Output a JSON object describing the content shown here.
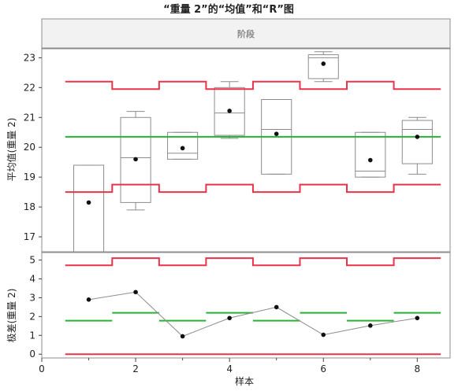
{
  "title": "“重量 2”的“均值”和“R”图",
  "phase_label": "阶段",
  "colors": {
    "limit": "#e8334a",
    "center": "#27b232",
    "box": "#8c8c8c",
    "point": "#111111",
    "line": "#8c8c8c",
    "frame": "#8c8c8c"
  },
  "chart_data": [
    {
      "type": "box",
      "ylabel": "平均值(重量 2)",
      "xlim": [
        0,
        8.7
      ],
      "ylim": [
        16.5,
        23.3
      ],
      "yticks": [
        "17",
        "18",
        "19",
        "20",
        "21",
        "22",
        "23"
      ],
      "samples": [
        1,
        2,
        3,
        4,
        5,
        6,
        7,
        8
      ],
      "means": [
        18.15,
        19.6,
        19.97,
        21.22,
        20.45,
        22.8,
        19.57,
        20.35
      ],
      "boxes": [
        {
          "sample": 1,
          "min": 16.5,
          "q1": 16.5,
          "median": 16.5,
          "q3": 19.4,
          "max": 19.4
        },
        {
          "sample": 2,
          "min": 17.9,
          "q1": 18.15,
          "median": 19.65,
          "q3": 21.0,
          "max": 21.2
        },
        {
          "sample": 3,
          "min": 19.6,
          "q1": 19.6,
          "median": 19.8,
          "q3": 20.5,
          "max": 20.5
        },
        {
          "sample": 4,
          "min": 20.3,
          "q1": 20.4,
          "median": 21.15,
          "q3": 22.0,
          "max": 22.2
        },
        {
          "sample": 5,
          "min": 19.1,
          "q1": 19.1,
          "median": 20.6,
          "q3": 21.6,
          "max": 21.6
        },
        {
          "sample": 6,
          "min": 22.2,
          "q1": 22.3,
          "median": 23.0,
          "q3": 23.1,
          "max": 23.2
        },
        {
          "sample": 7,
          "min": 19.0,
          "q1": 19.0,
          "median": 19.2,
          "q3": 20.5,
          "max": 20.5
        },
        {
          "sample": 8,
          "min": 19.1,
          "q1": 19.45,
          "median": 20.6,
          "q3": 20.9,
          "max": 21.0
        }
      ],
      "center_line": 20.35,
      "ucl": [
        22.2,
        21.95,
        22.2,
        21.95,
        22.2,
        21.95,
        22.2,
        21.95
      ],
      "lcl": [
        18.5,
        18.75,
        18.5,
        18.75,
        18.5,
        18.75,
        18.5,
        18.75
      ]
    },
    {
      "type": "line",
      "ylabel": "极差(重量 2)",
      "xlabel": "样本",
      "xlim": [
        0,
        8.7
      ],
      "ylim": [
        -0.2,
        5.4
      ],
      "yticks": [
        "0",
        "1",
        "2",
        "3",
        "4",
        "5"
      ],
      "xticks": [
        "0",
        "2",
        "4",
        "6",
        "8"
      ],
      "x": [
        1,
        2,
        3,
        4,
        5,
        6,
        7,
        8
      ],
      "values": [
        2.9,
        3.3,
        0.95,
        1.92,
        2.5,
        1.03,
        1.52,
        1.92
      ],
      "center": [
        1.78,
        2.2,
        1.78,
        2.2,
        1.78,
        2.2,
        1.78,
        2.2
      ],
      "ucl": [
        4.72,
        5.1,
        4.72,
        5.1,
        4.72,
        5.1,
        4.72,
        5.1
      ],
      "lcl": [
        0.0,
        0.0,
        0.0,
        0.0,
        0.0,
        0.0,
        0.0,
        0.0
      ]
    }
  ]
}
